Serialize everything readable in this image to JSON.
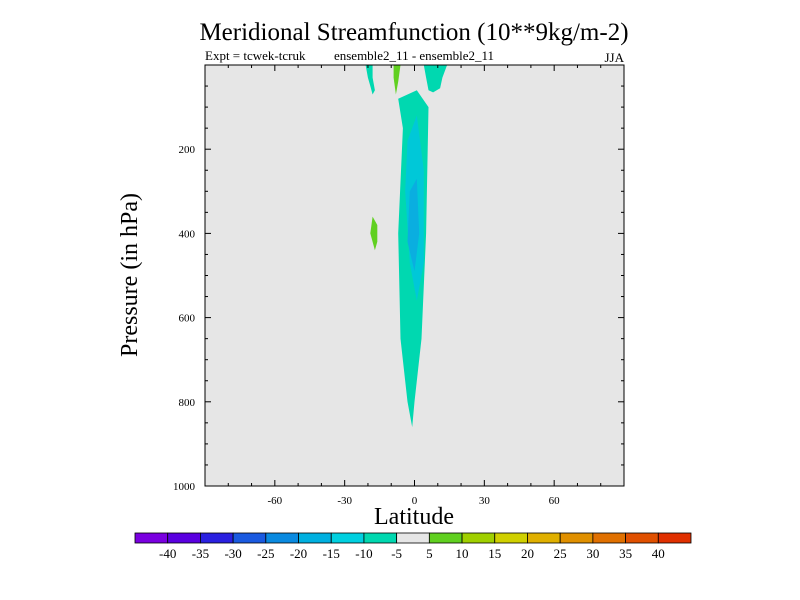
{
  "chart_data": {
    "type": "heatmap",
    "title": "Meridional Streamfunction (10**9kg/m-2)",
    "subtitle_left": "Expt = tcwek-tcruk",
    "subtitle_center": "ensemble2_11 - ensemble2_11",
    "season": "JJA",
    "xlabel": "Latitude",
    "ylabel": "Pressure (in hPa)",
    "xlim": [
      -90,
      90
    ],
    "ylim": [
      1000,
      0
    ],
    "x_ticks": [
      {
        "value": -60,
        "label": "-60"
      },
      {
        "value": -30,
        "label": "-30"
      },
      {
        "value": 0,
        "label": "0"
      },
      {
        "value": 30,
        "label": "30"
      },
      {
        "value": 60,
        "label": "60"
      }
    ],
    "y_ticks": [
      {
        "value": 200,
        "label": "200"
      },
      {
        "value": 400,
        "label": "400"
      },
      {
        "value": 600,
        "label": "600"
      },
      {
        "value": 800,
        "label": "800"
      },
      {
        "value": 1000,
        "label": "1000"
      }
    ],
    "background_color": "#e6e6e6",
    "colorbar": {
      "colors": [
        "#7a00e0",
        "#5a00e0",
        "#2a20e0",
        "#1a5ae0",
        "#0a8ae0",
        "#00b0e0",
        "#00d0e0",
        "#00d8b0",
        "#e6e6e6",
        "#60d020",
        "#a0d000",
        "#d0d000",
        "#e0b000",
        "#e09000",
        "#e07000",
        "#e05000",
        "#e03000"
      ],
      "labels": [
        "-40",
        "-35",
        "-30",
        "-25",
        "-20",
        "-15",
        "-10",
        "-5",
        "5",
        "10",
        "15",
        "20",
        "25",
        "30",
        "35",
        "40"
      ]
    },
    "regions": [
      {
        "level": "-10 to -5",
        "color": "#00d8b0",
        "polygon": [
          [
            -7,
            80
          ],
          [
            1,
            60
          ],
          [
            6,
            100
          ],
          [
            5,
            400
          ],
          [
            3,
            650
          ],
          [
            0,
            800
          ],
          [
            -1,
            860
          ],
          [
            -3,
            800
          ],
          [
            -6,
            650
          ],
          [
            -7,
            400
          ],
          [
            -5,
            150
          ]
        ]
      },
      {
        "level": "-15 to -10",
        "color": "#00c8d8",
        "polygon": [
          [
            -3,
            180
          ],
          [
            1,
            120
          ],
          [
            4,
            250
          ],
          [
            4,
            470
          ],
          [
            1,
            560
          ],
          [
            -2,
            470
          ],
          [
            -4,
            300
          ]
        ]
      },
      {
        "level": "-20 to -15",
        "color": "#0aaee0",
        "polygon": [
          [
            -2,
            300
          ],
          [
            1,
            270
          ],
          [
            2,
            400
          ],
          [
            0,
            490
          ],
          [
            -3,
            420
          ]
        ]
      },
      {
        "level": "-10 to -5",
        "color": "#00d8b0",
        "polygon": [
          [
            4,
            0
          ],
          [
            14,
            0
          ],
          [
            12,
            30
          ],
          [
            11,
            55
          ],
          [
            8,
            65
          ],
          [
            6,
            60
          ],
          [
            5,
            30
          ]
        ]
      },
      {
        "level": "-10 to -5",
        "color": "#00d8b0",
        "polygon": [
          [
            -21,
            0
          ],
          [
            -18,
            0
          ],
          [
            -18,
            30
          ],
          [
            -17,
            60
          ],
          [
            -18,
            70
          ],
          [
            -19,
            50
          ],
          [
            -20,
            30
          ]
        ]
      },
      {
        "level": "5 to 10",
        "color": "#60d020",
        "polygon": [
          [
            -9,
            0
          ],
          [
            -6,
            0
          ],
          [
            -7,
            40
          ],
          [
            -8,
            70
          ],
          [
            -9,
            30
          ]
        ]
      },
      {
        "level": "5 to 10",
        "color": "#60d020",
        "polygon": [
          [
            -18,
            360
          ],
          [
            -16,
            380
          ],
          [
            -16,
            420
          ],
          [
            -17,
            440
          ],
          [
            -19,
            400
          ]
        ]
      }
    ]
  }
}
